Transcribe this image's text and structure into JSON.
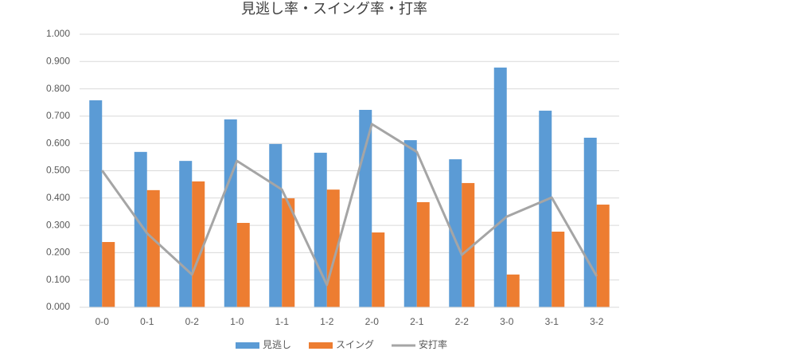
{
  "chart_data": {
    "type": "bar",
    "title": "見逃し率・スイング率・打率",
    "categories": [
      "0-0",
      "0-1",
      "0-2",
      "1-0",
      "1-1",
      "1-2",
      "2-0",
      "2-1",
      "2-2",
      "3-0",
      "3-1",
      "3-2"
    ],
    "series": [
      {
        "name": "見逃し",
        "color": "#5b9bd5",
        "type": "bar",
        "values": [
          0.758,
          0.569,
          0.536,
          0.688,
          0.598,
          0.566,
          0.723,
          0.612,
          0.542,
          0.878,
          0.72,
          0.621
        ]
      },
      {
        "name": "スイング",
        "color": "#ed7d31",
        "type": "bar",
        "values": [
          0.239,
          0.429,
          0.461,
          0.309,
          0.399,
          0.431,
          0.274,
          0.385,
          0.455,
          0.12,
          0.277,
          0.376
        ]
      },
      {
        "name": "安打率",
        "color": "#a5a5a5",
        "type": "line",
        "values": [
          0.501,
          0.271,
          0.12,
          0.536,
          0.431,
          0.082,
          0.671,
          0.569,
          0.192,
          0.332,
          0.402,
          0.114
        ]
      }
    ],
    "ylim": [
      0,
      1
    ],
    "yticks": [
      {
        "value": 0,
        "label": "0.000"
      },
      {
        "value": 0.1,
        "label": "0.100"
      },
      {
        "value": 0.2,
        "label": "0.200"
      },
      {
        "value": 0.3,
        "label": "0.300"
      },
      {
        "value": 0.4,
        "label": "0.400"
      },
      {
        "value": 0.5,
        "label": "0.500"
      },
      {
        "value": 0.6,
        "label": "0.600"
      },
      {
        "value": 0.7,
        "label": "0.700"
      },
      {
        "value": 0.8,
        "label": "0.800"
      },
      {
        "value": 0.9,
        "label": "0.900"
      },
      {
        "value": 1,
        "label": "1.000"
      }
    ],
    "grid": true,
    "legend": "bottom"
  }
}
